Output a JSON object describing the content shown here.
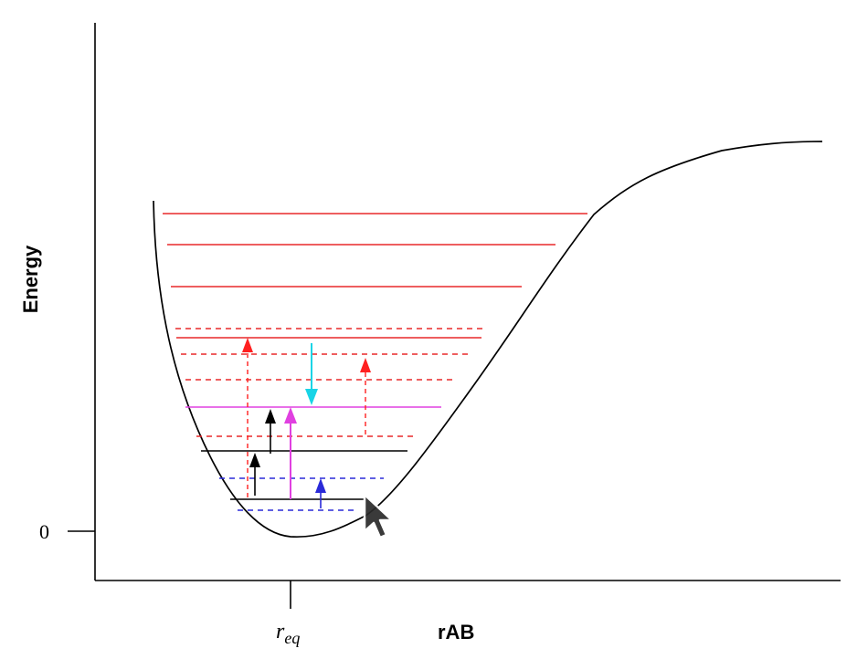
{
  "labels": {
    "y_axis": "Energy",
    "x_axis": "rAB",
    "zero_tick": "0",
    "r_eq_main": "r",
    "r_eq_sub": "eq"
  },
  "colors": {
    "curve": "#000000",
    "axes": "#000000",
    "red_level": "#e8282a",
    "black_level": "#000000",
    "magenta_level": "#e040e0",
    "blue_level": "#2a2ad8",
    "cyan_arrow": "#18d4e6",
    "red_arrow": "#ff2020",
    "magenta_arrow": "#e040e0",
    "black_arrow": "#000000",
    "blue_arrow": "#2a2ad8"
  },
  "icons": {
    "cursor": "mouse-pointer-icon"
  }
}
